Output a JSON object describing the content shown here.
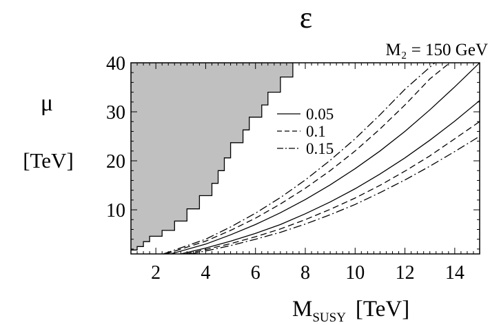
{
  "chart_data": {
    "type": "line",
    "title": "ε",
    "subtitle": "M₂ = 150 GeV",
    "xlabel": "M",
    "xlabel_subscript": "SUSY",
    "xlabel_unit": "[TeV]",
    "ylabel": "μ",
    "ylabel_unit": "[TeV]",
    "xlim": [
      1,
      15
    ],
    "ylim": [
      1,
      40
    ],
    "x_ticks": [
      2,
      4,
      6,
      8,
      10,
      12,
      14
    ],
    "y_ticks": [
      10,
      20,
      30,
      40
    ],
    "grid": false,
    "legend_position": "upper-middle",
    "excluded_region": {
      "fill": "#c0c0c0",
      "boundary": [
        [
          1,
          1.8
        ],
        [
          1.25,
          1.8
        ],
        [
          1.25,
          2.5
        ],
        [
          1.5,
          2.5
        ],
        [
          1.5,
          3.5
        ],
        [
          1.75,
          3.5
        ],
        [
          1.75,
          4.6
        ],
        [
          2.25,
          4.6
        ],
        [
          2.25,
          5.8
        ],
        [
          2.75,
          5.8
        ],
        [
          2.75,
          7.7
        ],
        [
          3.25,
          7.7
        ],
        [
          3.25,
          10.2
        ],
        [
          3.75,
          10.2
        ],
        [
          3.75,
          12.9
        ],
        [
          4.25,
          12.9
        ],
        [
          4.25,
          15.4
        ],
        [
          4.5,
          15.4
        ],
        [
          4.5,
          18.0
        ],
        [
          4.75,
          18.0
        ],
        [
          4.75,
          20.6
        ],
        [
          5.0,
          20.6
        ],
        [
          5.0,
          23.7
        ],
        [
          5.5,
          23.7
        ],
        [
          5.5,
          26.3
        ],
        [
          5.75,
          26.3
        ],
        [
          5.75,
          28.9
        ],
        [
          6.25,
          28.9
        ],
        [
          6.25,
          31.4
        ],
        [
          6.5,
          31.4
        ],
        [
          6.5,
          34.0
        ],
        [
          7.0,
          34.0
        ],
        [
          7.0,
          37.1
        ],
        [
          7.5,
          37.1
        ],
        [
          7.5,
          40
        ]
      ]
    },
    "series": [
      {
        "name": "0.05",
        "style": "solid",
        "branches": [
          {
            "x": [
              3.0,
              4.0,
              5.0,
              6.0,
              7.0,
              8.0,
              9.0,
              10.0,
              11.0,
              12.0,
              13.0,
              14.0,
              15.0
            ],
            "y": [
              1.0,
              2.2,
              3.6,
              5.2,
              7.0,
              9.2,
              11.6,
              14.3,
              17.3,
              20.6,
              24.2,
              28.1,
              32.3
            ]
          },
          {
            "x": [
              2.6,
              4.0,
              5.0,
              6.0,
              7.0,
              8.0,
              9.0,
              10.0,
              11.0,
              12.0,
              13.0,
              14.0,
              15.0
            ],
            "y": [
              1.0,
              3.0,
              4.9,
              7.0,
              9.4,
              12.1,
              15.1,
              18.4,
              22.0,
              26.0,
              30.4,
              35.1,
              40.0
            ]
          }
        ]
      },
      {
        "name": "0.1",
        "style": "dashed",
        "branches": [
          {
            "x": [
              3.2,
              4.0,
              5.0,
              6.0,
              7.0,
              8.0,
              9.0,
              10.0,
              11.0,
              12.0,
              13.0,
              14.0,
              15.0
            ],
            "y": [
              1.0,
              1.9,
              3.1,
              4.5,
              6.1,
              8.0,
              10.1,
              12.4,
              15.0,
              17.9,
              21.0,
              24.5,
              28.0
            ]
          },
          {
            "x": [
              2.4,
              4.0,
              5.0,
              6.0,
              7.0,
              8.0,
              9.0,
              10.0,
              11.0,
              12.0,
              13.0,
              13.8
            ],
            "y": [
              1.0,
              3.6,
              5.8,
              8.3,
              11.2,
              14.4,
              18.0,
              22.0,
              26.5,
              31.4,
              36.7,
              40.0
            ]
          }
        ]
      },
      {
        "name": "0.15",
        "style": "dashdot",
        "branches": [
          {
            "x": [
              3.4,
              4.0,
              5.0,
              6.0,
              7.0,
              8.0,
              9.0,
              10.0,
              11.0,
              12.0,
              13.0,
              14.0,
              15.0
            ],
            "y": [
              1.0,
              1.6,
              2.7,
              4.0,
              5.4,
              7.1,
              9.0,
              11.1,
              13.5,
              16.1,
              18.9,
              21.9,
              25.0
            ]
          },
          {
            "x": [
              2.3,
              4.0,
              5.0,
              6.0,
              7.0,
              8.0,
              9.0,
              10.0,
              11.0,
              12.0,
              13.2
            ],
            "y": [
              1.0,
              4.0,
              6.5,
              9.3,
              12.5,
              16.1,
              20.1,
              24.5,
              29.4,
              34.6,
              40.0
            ]
          }
        ]
      }
    ]
  }
}
